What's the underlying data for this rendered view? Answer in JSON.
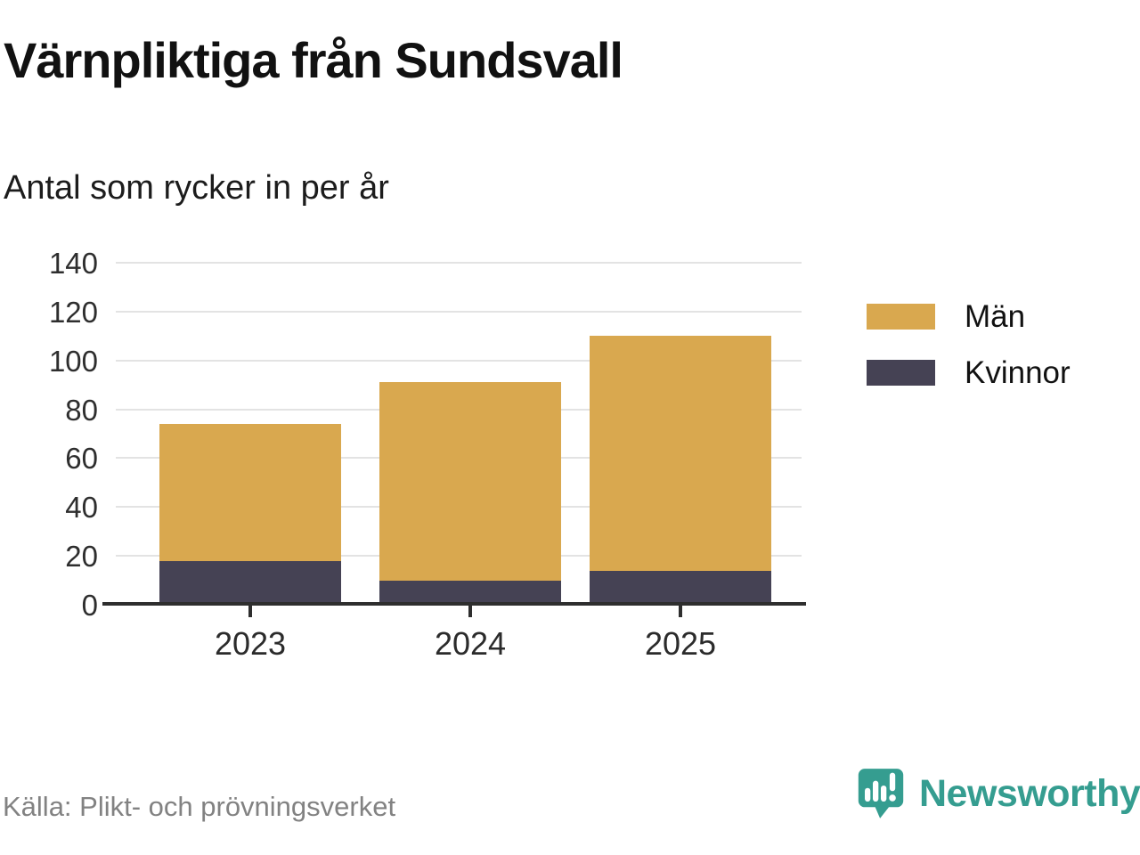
{
  "header": {
    "title": "Värnpliktiga från Sundsvall",
    "subtitle": "Antal som rycker in per år"
  },
  "chart_data": {
    "type": "bar",
    "stacked": true,
    "categories": [
      "2023",
      "2024",
      "2025"
    ],
    "series": [
      {
        "name": "Män",
        "color": "#d9a84f",
        "values": [
          56,
          81,
          96
        ]
      },
      {
        "name": "Kvinnor",
        "color": "#454254",
        "values": [
          18,
          10,
          14
        ]
      }
    ],
    "totals": [
      74,
      91,
      110
    ],
    "title": "Värnpliktiga från Sundsvall",
    "subtitle": "Antal som rycker in per år",
    "xlabel": "",
    "ylabel": "",
    "ylim": [
      0,
      140
    ],
    "yticks": [
      0,
      20,
      40,
      60,
      80,
      100,
      120,
      140
    ],
    "grid": true,
    "legend_position": "right"
  },
  "legend": {
    "items": [
      {
        "label": "Män",
        "color": "#d9a84f"
      },
      {
        "label": "Kvinnor",
        "color": "#454254"
      }
    ]
  },
  "footer": {
    "source": "Källa: Plikt- och prövningsverket",
    "brand": "Newsworthy",
    "brand_color": "#359d90"
  }
}
